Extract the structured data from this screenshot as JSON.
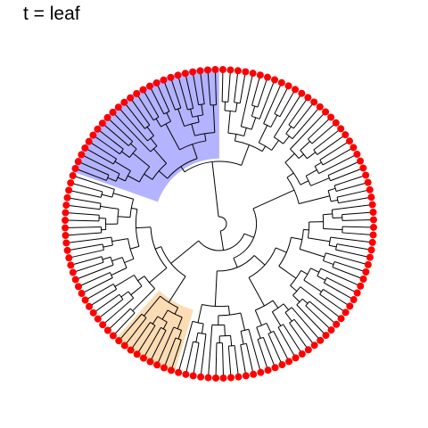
{
  "title": "t = leaf",
  "tree": {
    "layout": "circular",
    "tip_count": 128,
    "tip_color": "#ff0000",
    "edge_color": "#000000",
    "highlights": [
      {
        "name": "blue-clade",
        "color": "#b3b3ff",
        "tips": 25
      },
      {
        "name": "orange-clade",
        "color": "#fcdcb4",
        "tips": 9
      }
    ]
  }
}
